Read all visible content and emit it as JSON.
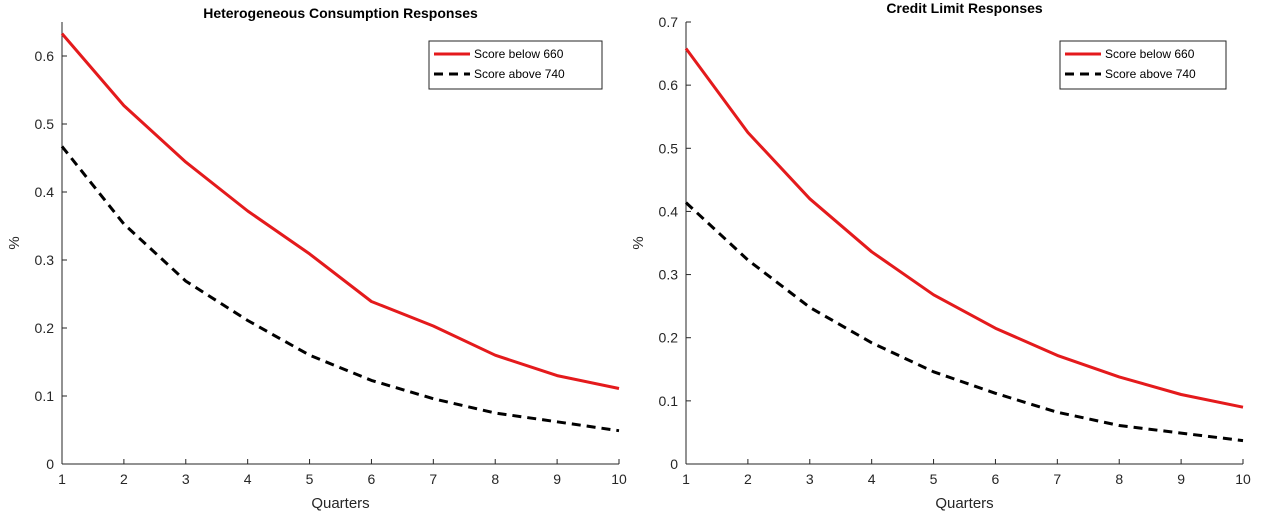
{
  "chart_data": [
    {
      "type": "line",
      "title": "Heterogeneous Consumption Responses",
      "xlabel": "Quarters",
      "ylabel": "%",
      "xlim": [
        1,
        10
      ],
      "ylim": [
        0,
        0.65
      ],
      "xticks": [
        "1",
        "2",
        "3",
        "4",
        "5",
        "6",
        "7",
        "8",
        "9",
        "10"
      ],
      "yticks": [
        "0",
        "0.1",
        "0.2",
        "0.3",
        "0.4",
        "0.5",
        "0.6"
      ],
      "ytick_values": [
        0,
        0.1,
        0.2,
        0.3,
        0.4,
        0.5,
        0.6
      ],
      "legend_position": "top-right",
      "x": [
        1,
        2,
        3,
        4,
        5,
        6,
        7,
        8,
        9,
        10
      ],
      "series": [
        {
          "name": "Score below 660",
          "color": "#e41a1c",
          "style": "solid",
          "values": [
            0.633,
            0.527,
            0.444,
            0.372,
            0.309,
            0.239,
            0.203,
            0.16,
            0.13,
            0.111
          ]
        },
        {
          "name": "Score above 740",
          "color": "#000000",
          "style": "dashed",
          "values": [
            0.467,
            0.353,
            0.269,
            0.211,
            0.16,
            0.123,
            0.096,
            0.075,
            0.062,
            0.049
          ]
        }
      ]
    },
    {
      "type": "line",
      "title": "Credit Limit Responses",
      "xlabel": "Quarters",
      "ylabel": "%",
      "xlim": [
        1,
        10
      ],
      "ylim": [
        0,
        0.7
      ],
      "xticks": [
        "1",
        "2",
        "3",
        "4",
        "5",
        "6",
        "7",
        "8",
        "9",
        "10"
      ],
      "yticks": [
        "0",
        "0.1",
        "0.2",
        "0.3",
        "0.4",
        "0.5",
        "0.6",
        "0.7"
      ],
      "ytick_values": [
        0,
        0.1,
        0.2,
        0.3,
        0.4,
        0.5,
        0.6,
        0.7
      ],
      "legend_position": "top-right",
      "x": [
        1,
        2,
        3,
        4,
        5,
        6,
        7,
        8,
        9,
        10
      ],
      "series": [
        {
          "name": "Score below 660",
          "color": "#e41a1c",
          "style": "solid",
          "values": [
            0.658,
            0.525,
            0.42,
            0.336,
            0.268,
            0.215,
            0.172,
            0.138,
            0.11,
            0.09
          ]
        },
        {
          "name": "Score above 740",
          "color": "#000000",
          "style": "dashed",
          "values": [
            0.414,
            0.323,
            0.248,
            0.192,
            0.146,
            0.112,
            0.082,
            0.061,
            0.049,
            0.037
          ]
        }
      ]
    }
  ]
}
